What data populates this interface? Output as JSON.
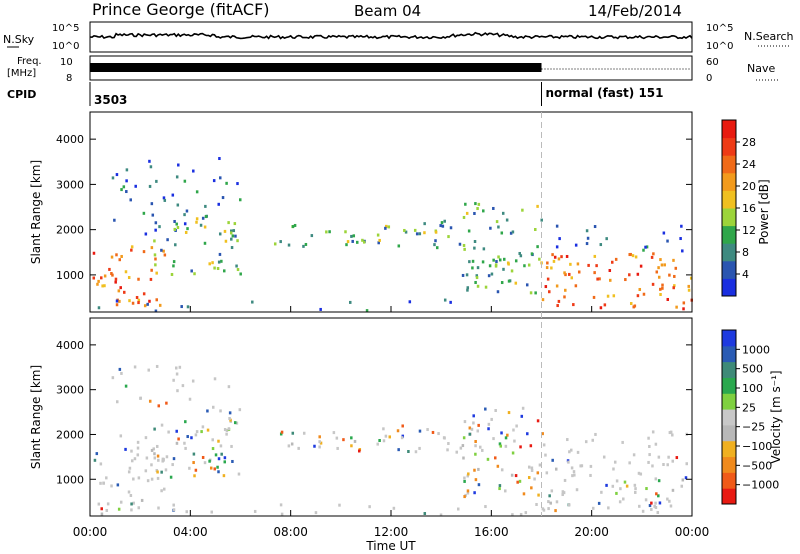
{
  "header": {
    "title": "Prince George (fitACF)",
    "beam": "Beam 04",
    "date": "14/Feb/2014"
  },
  "status_panels": {
    "nsky_label": "N.Sky",
    "nsearch_label": "N.Search",
    "noise_ticks_left": [
      "10^5",
      "10^0"
    ],
    "noise_ticks_right": [
      "10^5",
      "10^0"
    ],
    "freq_label_top": "Freq.",
    "freq_label_unit": "[MHz]",
    "freq_ticks": [
      "10",
      "8"
    ],
    "nave_label": "Nave",
    "nave_ticks": [
      "60",
      "0"
    ],
    "cpid_label": "CPID",
    "cpid_first": "3503",
    "cpid_second": "normal (fast) 151",
    "mode_change_hour": 18
  },
  "colors": {
    "power_scale": [
      "#1a2fe0",
      "#2a55b0",
      "#3e8a80",
      "#2fa64a",
      "#9cd43a",
      "#f0c020",
      "#f29a1c",
      "#f06a18",
      "#ee3a16",
      "#e81a10"
    ],
    "velocity_scale": [
      "#1e3adf",
      "#2a5bb4",
      "#3e8a78",
      "#2aa84e",
      "#7fd040",
      "#c8c8c8",
      "#b8b8b8",
      "#f0b020",
      "#f08a1c",
      "#f05a18",
      "#e81a12"
    ]
  },
  "chart_data": [
    {
      "type": "heatmap",
      "name": "power",
      "xlabel": "",
      "ylabel": "Slant Range [km]",
      "xlim": [
        0,
        24
      ],
      "ylim": [
        180,
        4600
      ],
      "yticks": [
        "1000",
        "2000",
        "3000",
        "4000"
      ],
      "colorbar_label": "Power [dB]",
      "colorbar_ticks": [
        "4",
        "8",
        "12",
        "16",
        "20",
        "24",
        "28"
      ]
    },
    {
      "type": "heatmap",
      "name": "velocity",
      "xlabel": "Time UT",
      "ylabel": "Slant Range [km]",
      "xlim": [
        0,
        24
      ],
      "ylim": [
        180,
        4600
      ],
      "xticks": [
        "00:00",
        "04:00",
        "08:00",
        "12:00",
        "16:00",
        "20:00",
        "00:00"
      ],
      "yticks": [
        "1000",
        "2000",
        "3000",
        "4000"
      ],
      "colorbar_label": "Velocity [m s⁻¹]",
      "colorbar_ticks": [
        "1000",
        "500",
        "100",
        "25",
        "−25",
        "−100",
        "−500",
        "−1000"
      ]
    }
  ]
}
